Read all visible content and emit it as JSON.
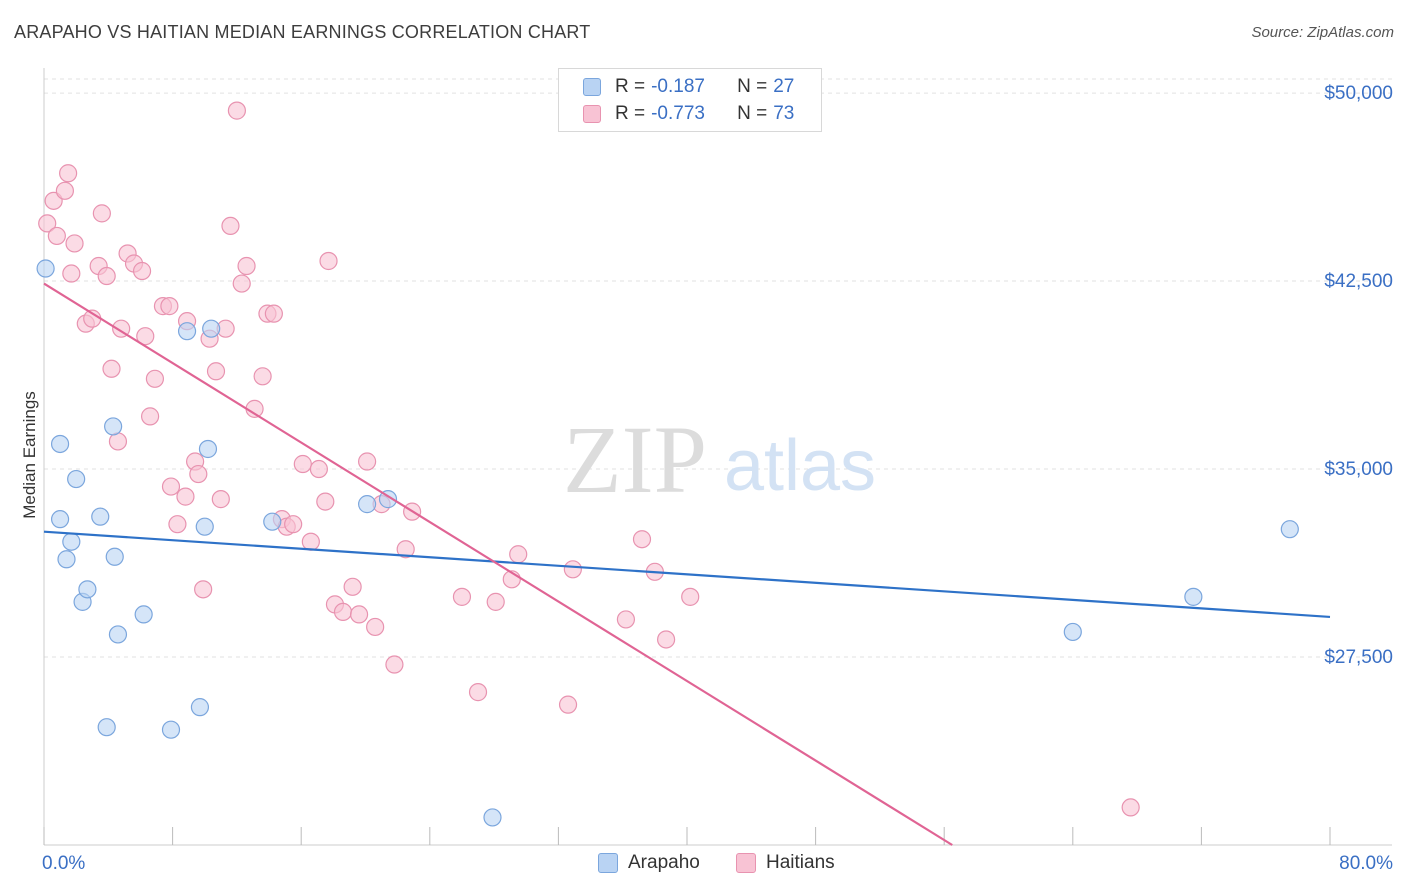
{
  "header": {
    "title": "ARAPAHO VS HAITIAN MEDIAN EARNINGS CORRELATION CHART",
    "source": "Source: ZipAtlas.com"
  },
  "watermark": {
    "zip": "ZIP",
    "atlas": "atlas"
  },
  "legend": {
    "rows": [
      {
        "r_label": "R =",
        "r_value": "-0.187",
        "n_label": "N =",
        "n_value": "27"
      },
      {
        "r_label": "R =",
        "r_value": "-0.773",
        "n_label": "N =",
        "n_value": "73"
      }
    ]
  },
  "colors": {
    "arapaho_fill": "#b9d3f3",
    "arapaho_stroke": "#7ba6dd",
    "arapaho_line": "#2e72c8",
    "haitians_fill": "#f8c3d4",
    "haitians_stroke": "#e893b0",
    "haitians_line": "#e06494",
    "axis_text": "#3a6fc4",
    "grid": "#e2e2e2"
  },
  "chart_data": {
    "type": "scatter",
    "title": "ARAPAHO VS HAITIAN MEDIAN EARNINGS CORRELATION CHART",
    "xlabel": "",
    "ylabel": "Median Earnings",
    "xlim": [
      0,
      80
    ],
    "ylim": [
      20000,
      51000
    ],
    "x_tick_labels": [
      "0.0%",
      "80.0%"
    ],
    "y_ticks": [
      27500,
      35000,
      42500,
      50000
    ],
    "y_tick_labels": [
      "$27,500",
      "$35,000",
      "$42,500",
      "$50,000"
    ],
    "grid": true,
    "legend_position": "top-center",
    "series": [
      {
        "name": "Arapaho",
        "trend": {
          "x": [
            0,
            80
          ],
          "y": [
            32500,
            29100
          ]
        },
        "points": [
          [
            0.1,
            43000
          ],
          [
            1.0,
            33000
          ],
          [
            1.0,
            36000
          ],
          [
            1.4,
            31400
          ],
          [
            1.7,
            32100
          ],
          [
            2.0,
            34600
          ],
          [
            2.4,
            29700
          ],
          [
            2.7,
            30200
          ],
          [
            3.5,
            33100
          ],
          [
            3.9,
            24700
          ],
          [
            4.4,
            31500
          ],
          [
            4.6,
            28400
          ],
          [
            4.3,
            36700
          ],
          [
            6.2,
            29200
          ],
          [
            7.9,
            24600
          ],
          [
            8.9,
            40500
          ],
          [
            9.7,
            25500
          ],
          [
            10.0,
            32700
          ],
          [
            10.2,
            35800
          ],
          [
            10.4,
            40600
          ],
          [
            14.2,
            32900
          ],
          [
            20.1,
            33600
          ],
          [
            21.4,
            33800
          ],
          [
            27.9,
            21100
          ],
          [
            64.0,
            28500
          ],
          [
            71.5,
            29900
          ],
          [
            77.5,
            32600
          ]
        ]
      },
      {
        "name": "Haitians",
        "trend": {
          "x": [
            0,
            56.5
          ],
          "y": [
            42400,
            20000
          ]
        },
        "points": [
          [
            0.2,
            44800
          ],
          [
            0.6,
            45700
          ],
          [
            0.8,
            44300
          ],
          [
            1.3,
            46100
          ],
          [
            1.5,
            46800
          ],
          [
            1.7,
            42800
          ],
          [
            1.9,
            44000
          ],
          [
            2.6,
            40800
          ],
          [
            3.0,
            41000
          ],
          [
            3.4,
            43100
          ],
          [
            3.6,
            45200
          ],
          [
            3.9,
            42700
          ],
          [
            4.2,
            39000
          ],
          [
            4.6,
            36100
          ],
          [
            4.8,
            40600
          ],
          [
            5.2,
            43600
          ],
          [
            5.6,
            43200
          ],
          [
            6.1,
            42900
          ],
          [
            6.3,
            40300
          ],
          [
            6.6,
            37100
          ],
          [
            6.9,
            38600
          ],
          [
            7.4,
            41500
          ],
          [
            7.8,
            41500
          ],
          [
            7.9,
            34300
          ],
          [
            8.3,
            32800
          ],
          [
            8.8,
            33900
          ],
          [
            8.9,
            40900
          ],
          [
            9.4,
            35300
          ],
          [
            9.6,
            34800
          ],
          [
            9.9,
            30200
          ],
          [
            10.3,
            40200
          ],
          [
            10.7,
            38900
          ],
          [
            11.0,
            33800
          ],
          [
            11.3,
            40600
          ],
          [
            11.6,
            44700
          ],
          [
            12.0,
            49300
          ],
          [
            12.3,
            42400
          ],
          [
            12.6,
            43100
          ],
          [
            13.1,
            37400
          ],
          [
            13.6,
            38700
          ],
          [
            13.9,
            41200
          ],
          [
            14.3,
            41200
          ],
          [
            14.8,
            33000
          ],
          [
            15.1,
            32700
          ],
          [
            15.5,
            32800
          ],
          [
            16.1,
            35200
          ],
          [
            16.6,
            32100
          ],
          [
            17.1,
            35000
          ],
          [
            17.5,
            33700
          ],
          [
            17.7,
            43300
          ],
          [
            18.1,
            29600
          ],
          [
            18.6,
            29300
          ],
          [
            19.2,
            30300
          ],
          [
            19.6,
            29200
          ],
          [
            20.1,
            35300
          ],
          [
            20.6,
            28700
          ],
          [
            21.0,
            33600
          ],
          [
            21.8,
            27200
          ],
          [
            22.5,
            31800
          ],
          [
            22.9,
            33300
          ],
          [
            26.0,
            29900
          ],
          [
            27.0,
            26100
          ],
          [
            28.1,
            29700
          ],
          [
            29.1,
            30600
          ],
          [
            29.5,
            31600
          ],
          [
            32.6,
            25600
          ],
          [
            32.9,
            31000
          ],
          [
            36.2,
            29000
          ],
          [
            37.2,
            32200
          ],
          [
            38.0,
            30900
          ],
          [
            38.7,
            28200
          ],
          [
            40.2,
            29900
          ],
          [
            67.6,
            21500
          ]
        ]
      }
    ]
  }
}
